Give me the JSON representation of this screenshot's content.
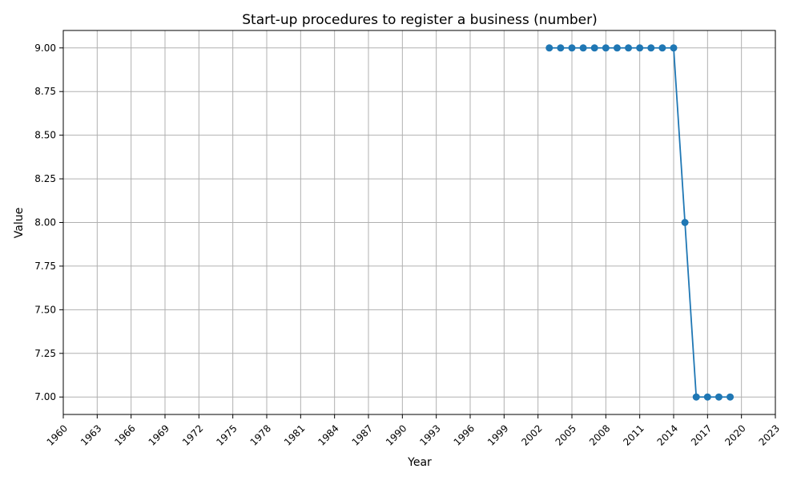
{
  "chart_data": {
    "type": "line",
    "title": "Start-up procedures to register a business (number)",
    "xlabel": "Year",
    "ylabel": "Value",
    "xlim": [
      1960,
      2023
    ],
    "ylim": [
      6.9,
      9.1
    ],
    "x_ticks": [
      1960,
      1963,
      1966,
      1969,
      1972,
      1975,
      1978,
      1981,
      1984,
      1987,
      1990,
      1993,
      1996,
      1999,
      2002,
      2005,
      2008,
      2011,
      2014,
      2017,
      2020,
      2023
    ],
    "y_ticks": [
      "7.00",
      "7.25",
      "7.50",
      "7.75",
      "8.00",
      "8.25",
      "8.50",
      "8.75",
      "9.00"
    ],
    "grid": true,
    "series": [
      {
        "color": "#1f77b4",
        "x": [
          2003,
          2004,
          2005,
          2006,
          2007,
          2008,
          2009,
          2010,
          2011,
          2012,
          2013,
          2014,
          2015,
          2016,
          2017,
          2018,
          2019
        ],
        "values": [
          9,
          9,
          9,
          9,
          9,
          9,
          9,
          9,
          9,
          9,
          9,
          9,
          8,
          7,
          7,
          7,
          7
        ]
      }
    ]
  }
}
